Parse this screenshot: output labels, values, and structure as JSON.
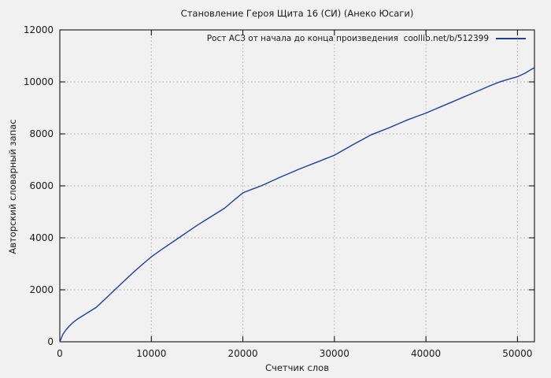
{
  "colors": {
    "background": "#f1f1f1",
    "line": "#1c3f9f",
    "axis": "#000000",
    "grid": "#aaaaaa",
    "text": "#1a1a1a"
  },
  "chart_data": {
    "type": "line",
    "title": "Становление Героя Щита 16 (СИ) (Анеко Юсаги)",
    "xlabel": "Счетчик слов",
    "ylabel": "Авторский словарный запас",
    "xlim": [
      0,
      51860
    ],
    "ylim": [
      0,
      12000
    ],
    "x_ticks": [
      0,
      10000,
      20000,
      30000,
      40000,
      50000
    ],
    "y_ticks": [
      0,
      2000,
      4000,
      6000,
      8000,
      10000,
      12000
    ],
    "grid": true,
    "legend_position": "top-right",
    "series": [
      {
        "name": "Рост АСЗ от начала до конца произведения  coollib.net/b/512399",
        "x": [
          0,
          350,
          700,
          1000,
          1500,
          2000,
          2500,
          3000,
          4000,
          5000,
          6000,
          7000,
          8000,
          9000,
          10000,
          11000,
          12000,
          13000,
          14000,
          15000,
          16000,
          17000,
          18000,
          19000,
          20000,
          21000,
          22000,
          23000,
          24000,
          25000,
          26000,
          27000,
          28000,
          29000,
          30000,
          31000,
          32000,
          33000,
          34000,
          35000,
          36000,
          37000,
          38000,
          39000,
          40000,
          41000,
          42000,
          43000,
          44000,
          45000,
          46000,
          47000,
          48000,
          49000,
          50000,
          50800,
          51500,
          51860
        ],
        "y": [
          0,
          300,
          470,
          590,
          760,
          890,
          1000,
          1110,
          1330,
          1660,
          2000,
          2330,
          2660,
          2970,
          3270,
          3520,
          3760,
          4000,
          4240,
          4480,
          4700,
          4920,
          5140,
          5440,
          5730,
          5870,
          6000,
          6160,
          6320,
          6470,
          6620,
          6760,
          6900,
          7040,
          7180,
          7380,
          7580,
          7770,
          7960,
          8100,
          8240,
          8390,
          8540,
          8670,
          8800,
          8950,
          9100,
          9250,
          9400,
          9550,
          9700,
          9850,
          9990,
          10100,
          10200,
          10330,
          10480,
          10550
        ]
      }
    ]
  }
}
